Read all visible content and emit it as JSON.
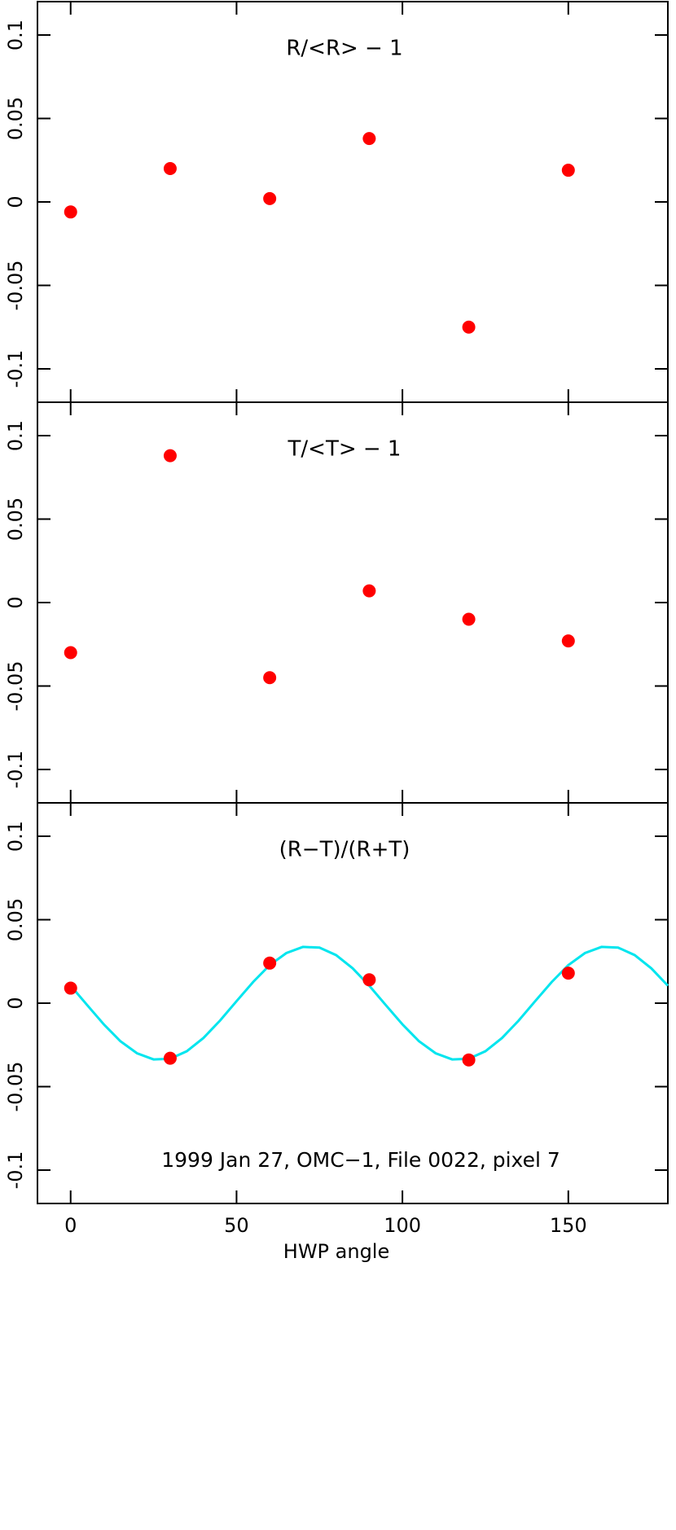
{
  "chart_data": [
    {
      "type": "scatter",
      "title": "R/<R> − 1",
      "x": [
        0,
        30,
        60,
        90,
        120,
        150
      ],
      "values": [
        -0.006,
        0.02,
        0.002,
        0.038,
        -0.075,
        0.019
      ],
      "color": "#ff0000",
      "xlim": [
        -10,
        180
      ],
      "xticks": [
        0,
        50,
        100,
        150
      ],
      "ylim": [
        -0.12,
        0.12
      ],
      "yticks": [
        -0.1,
        -0.05,
        0,
        0.05,
        0.1
      ]
    },
    {
      "type": "scatter",
      "title": "T/<T> − 1",
      "x": [
        0,
        30,
        60,
        90,
        120,
        150
      ],
      "values": [
        -0.03,
        0.088,
        -0.045,
        0.007,
        -0.01,
        -0.023
      ],
      "color": "#ff0000",
      "xlim": [
        -10,
        180
      ],
      "xticks": [
        0,
        50,
        100,
        150
      ],
      "ylim": [
        -0.12,
        0.12
      ],
      "yticks": [
        -0.1,
        -0.05,
        0,
        0.05,
        0.1
      ]
    },
    {
      "type": "scatter",
      "title": "(R−T)/(R+T)",
      "xlabel": "HWP angle",
      "annotation": "1999 Jan 27, OMC−1, File 0022, pixel 7",
      "series": [
        {
          "type": "line",
          "color": "#00e5ee",
          "x": [
            0,
            5,
            10,
            15,
            20,
            25,
            30,
            35,
            40,
            45,
            50,
            55,
            60,
            65,
            70,
            75,
            80,
            85,
            90,
            95,
            100,
            105,
            110,
            115,
            120,
            125,
            130,
            135,
            140,
            145,
            150,
            155,
            160,
            165,
            170,
            175,
            180
          ],
          "values": [
            0.0105,
            -0.0012,
            -0.0127,
            -0.0228,
            -0.03,
            -0.0337,
            -0.0333,
            -0.0288,
            -0.0209,
            -0.0105,
            0.0012,
            0.0127,
            0.0228,
            0.03,
            0.0337,
            0.0333,
            0.0288,
            0.0209,
            0.0105,
            -0.0012,
            -0.0127,
            -0.0228,
            -0.03,
            -0.0337,
            -0.0333,
            -0.0288,
            -0.0209,
            -0.0105,
            0.0012,
            0.0127,
            0.0228,
            0.03,
            0.0337,
            0.0333,
            0.0288,
            0.0209,
            0.0105
          ]
        },
        {
          "type": "scatter",
          "color": "#ff0000",
          "x": [
            0,
            30,
            60,
            90,
            120,
            150
          ],
          "values": [
            0.009,
            -0.033,
            0.024,
            0.014,
            -0.034,
            0.018
          ]
        }
      ],
      "xlim": [
        -10,
        180
      ],
      "xticks": [
        0,
        50,
        100,
        150
      ],
      "ylim": [
        -0.12,
        0.12
      ],
      "yticks": [
        -0.1,
        -0.05,
        0,
        0.05,
        0.1
      ]
    }
  ]
}
